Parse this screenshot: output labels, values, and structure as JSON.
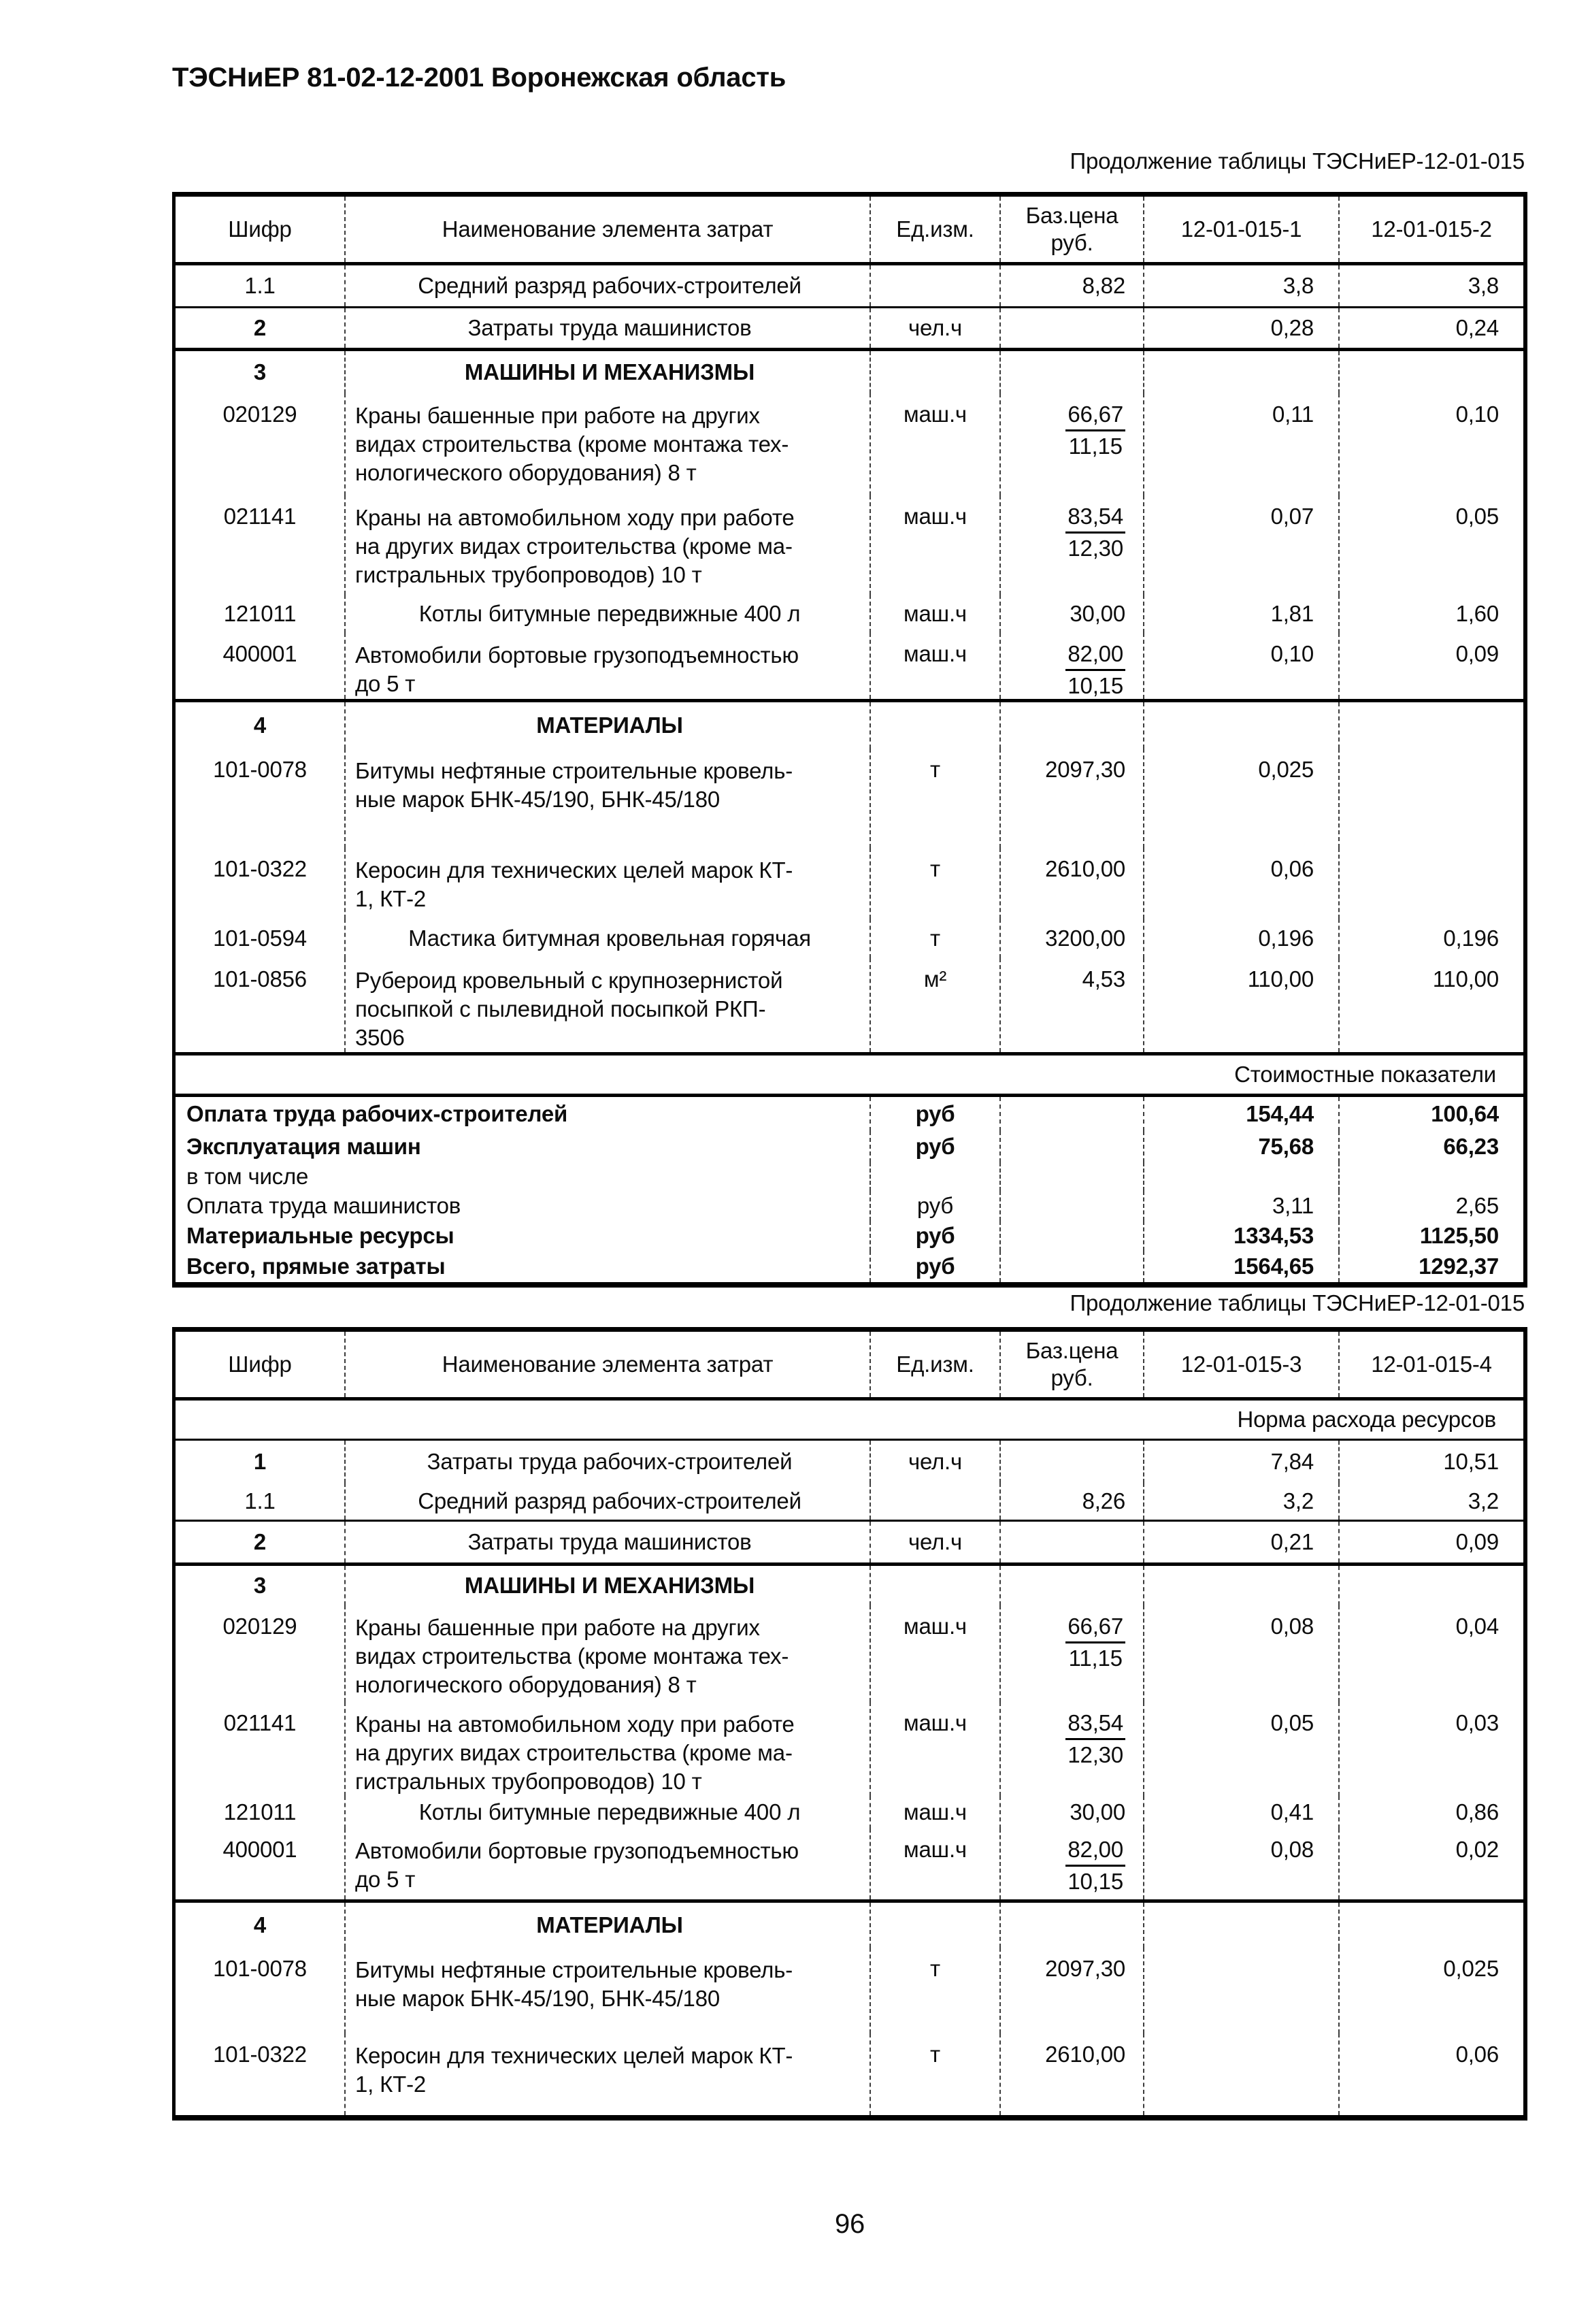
{
  "page": {
    "title": "ТЭСНиЕР 81-02-12-2001 Воронежская область",
    "number": "96"
  },
  "tables": [
    {
      "caption": "Продолжение таблицы ТЭСНиЕР-12-01-015",
      "columns": [
        [
          "Шифр"
        ],
        [
          "Наименование элемента затрат"
        ],
        [
          "Ед.изм."
        ],
        [
          "Баз.цена",
          "руб."
        ],
        [
          "12-01-015-1"
        ],
        [
          "12-01-015-2"
        ]
      ],
      "rows": [
        {
          "t": "item",
          "code": "1.1",
          "name": [
            "Средний разряд рабочих-строителей"
          ],
          "unit": "",
          "price": [
            "8,82"
          ],
          "v1": "3,8",
          "v2": "3,8",
          "h": 60,
          "line": "thin"
        },
        {
          "t": "item",
          "code": "2",
          "cb": true,
          "name": [
            "Затраты труда машинистов"
          ],
          "unit": "чел.ч",
          "price": [],
          "v1": "0,28",
          "v2": "0,24",
          "h": 58,
          "line": "thick"
        },
        {
          "t": "sec",
          "code": "3",
          "name": [
            "МАШИНЫ И МЕХАНИЗМЫ"
          ],
          "h": 62
        },
        {
          "t": "item",
          "code": "020129",
          "name": [
            "Краны башенные при работе на других",
            "видах строительства (кроме монтажа тех-",
            "нологического оборудования) 8 т"
          ],
          "unit": "маш.ч",
          "price": [
            "66,67",
            "11,15"
          ],
          "v1": "0,11",
          "v2": "0,10",
          "h": 150
        },
        {
          "t": "item",
          "code": "021141",
          "name": [
            "Краны на автомобильном ходу при работе",
            "на других видах строительства (кроме ма-",
            "гистральных трубопроводов) 10 т"
          ],
          "unit": "маш.ч",
          "price": [
            "83,54",
            "12,30"
          ],
          "v1": "0,07",
          "v2": "0,05",
          "h": 146
        },
        {
          "t": "item",
          "code": "121011",
          "name": [
            "Котлы битумные передвижные 400 л"
          ],
          "unit": "маш.ч",
          "price": [
            "30,00"
          ],
          "v1": "1,81",
          "v2": "1,60",
          "h": 56
        },
        {
          "t": "item",
          "code": "400001",
          "name": [
            "Автомобили бортовые грузоподъемностью",
            "до 5 т"
          ],
          "unit": "маш.ч",
          "price": [
            "82,00",
            "10,15"
          ],
          "v1": "0,10",
          "v2": "0,09",
          "h": 93,
          "line": "thick"
        },
        {
          "t": "sec",
          "code": "4",
          "name": [
            "МАТЕРИАЛЫ"
          ],
          "h": 68
        },
        {
          "t": "item",
          "code": "101-0078",
          "name": [
            "Битумы нефтяные строительные кровель-",
            "ные марок БНК-45/190, БНК-45/180"
          ],
          "unit": "т",
          "price": [
            "2097,30"
          ],
          "v1": "0,025",
          "v2": "",
          "h": 146
        },
        {
          "t": "item",
          "code": "101-0322",
          "name": [
            "Керосин для технических целей марок КТ-",
            "1, КТ-2"
          ],
          "unit": "т",
          "price": [
            "2610,00"
          ],
          "v1": "0,06",
          "v2": "",
          "h": 104
        },
        {
          "t": "item",
          "code": "101-0594",
          "name": [
            "Мастика битумная кровельная горячая"
          ],
          "unit": "т",
          "price": [
            "3200,00"
          ],
          "v1": "0,196",
          "v2": "0,196",
          "h": 58
        },
        {
          "t": "item",
          "code": "101-0856",
          "name": [
            "Рубероид кровельный с крупнозернистой",
            "посыпкой с пылевидной посыпкой РКП-",
            "3506"
          ],
          "unit": "м²",
          "price": [
            "4,53"
          ],
          "v1": "110,00",
          "v2": "110,00",
          "h": 128,
          "line": "thick"
        },
        {
          "t": "note",
          "name": [
            "Стоимостные показатели"
          ],
          "h": 56,
          "line": "thick"
        },
        {
          "t": "sum",
          "b": true,
          "name": [
            "Оплата труда рабочих-строителей"
          ],
          "unit": "руб",
          "v1": "154,44",
          "v2": "100,64",
          "h": 50
        },
        {
          "t": "sum",
          "b": true,
          "name": [
            "Эксплуатация машин"
          ],
          "unit": "руб",
          "v1": "75,68",
          "v2": "66,23",
          "h": 46
        },
        {
          "t": "sum",
          "name": [
            "в том числе"
          ],
          "unit": "",
          "v1": "",
          "v2": "",
          "h": 42
        },
        {
          "t": "sum",
          "name": [
            "Оплата труда машинистов"
          ],
          "unit": "руб",
          "v1": "3,11",
          "v2": "2,65",
          "h": 44
        },
        {
          "t": "sum",
          "b": true,
          "name": [
            "Материальные ресурсы"
          ],
          "unit": "руб",
          "v1": "1334,53",
          "v2": "1125,50",
          "h": 44
        },
        {
          "t": "sum",
          "b": true,
          "name": [
            "Всего, прямые затраты"
          ],
          "unit": "руб",
          "v1": "1564,65",
          "v2": "1292,37",
          "h": 46
        }
      ]
    },
    {
      "caption": "Продолжение таблицы ТЭСНиЕР-12-01-015",
      "columns": [
        [
          "Шифр"
        ],
        [
          "Наименование элемента затрат"
        ],
        [
          "Ед.изм."
        ],
        [
          "Баз.цена",
          "руб."
        ],
        [
          "12-01-015-3"
        ],
        [
          "12-01-015-4"
        ]
      ],
      "rows": [
        {
          "t": "note",
          "name": [
            "Норма расхода ресурсов"
          ],
          "h": 56,
          "line": "thin"
        },
        {
          "t": "item",
          "code": "1",
          "cb": true,
          "name": [
            "Затраты труда рабочих-строителей"
          ],
          "unit": "чел.ч",
          "price": [],
          "v1": "7,84",
          "v2": "10,51",
          "h": 62
        },
        {
          "t": "item",
          "code": "1.1",
          "name": [
            "Средний разряд рабочих-строителей"
          ],
          "unit": "",
          "price": [
            "8,26"
          ],
          "v1": "3,2",
          "v2": "3,2",
          "h": 54,
          "line": "thin"
        },
        {
          "t": "item",
          "code": "2",
          "cb": true,
          "name": [
            "Затраты труда машинистов"
          ],
          "unit": "чел.ч",
          "price": [],
          "v1": "0,21",
          "v2": "0,09",
          "h": 60,
          "line": "thick"
        },
        {
          "t": "sec",
          "code": "3",
          "name": [
            "МАШИНЫ И МЕХАНИЗМЫ"
          ],
          "h": 58
        },
        {
          "t": "item",
          "code": "020129",
          "name": [
            "Краны башенные при работе на других",
            "видах строительства (кроме монтажа тех-",
            "нологического оборудования) 8 т"
          ],
          "unit": "маш.ч",
          "price": [
            "66,67",
            "11,15"
          ],
          "v1": "0,08",
          "v2": "0,04",
          "h": 142
        },
        {
          "t": "item",
          "code": "021141",
          "name": [
            "Краны на автомобильном ходу при работе",
            "на других видах строительства (кроме ма-",
            "гистральных трубопроводов) 10 т"
          ],
          "unit": "маш.ч",
          "price": [
            "83,54",
            "12,30"
          ],
          "v1": "0,05",
          "v2": "0,03",
          "h": 136
        },
        {
          "t": "item",
          "code": "121011",
          "name": [
            "Котлы битумные передвижные 400 л"
          ],
          "unit": "маш.ч",
          "price": [
            "30,00"
          ],
          "v1": "0,41",
          "v2": "0,86",
          "h": 48
        },
        {
          "t": "item",
          "code": "400001",
          "name": [
            "Автомобили бортовые грузоподъемностью",
            "до 5 т"
          ],
          "unit": "маш.ч",
          "price": [
            "82,00",
            "10,15"
          ],
          "v1": "0,08",
          "v2": "0,02",
          "h": 104,
          "line": "thick"
        },
        {
          "t": "sec",
          "code": "4",
          "name": [
            "МАТЕРИАЛЫ"
          ],
          "h": 66
        },
        {
          "t": "item",
          "code": "101-0078",
          "name": [
            "Битумы нефтяные строительные кровель-",
            "ные марок БНК-45/190, БНК-45/180"
          ],
          "unit": "т",
          "price": [
            "2097,30"
          ],
          "v1": "",
          "v2": "0,025",
          "h": 126
        },
        {
          "t": "item",
          "code": "101-0322",
          "name": [
            "Керосин для технических целей марок КТ-",
            "1, КТ-2"
          ],
          "unit": "т",
          "price": [
            "2610,00"
          ],
          "v1": "",
          "v2": "0,06",
          "h": 120
        }
      ]
    }
  ]
}
